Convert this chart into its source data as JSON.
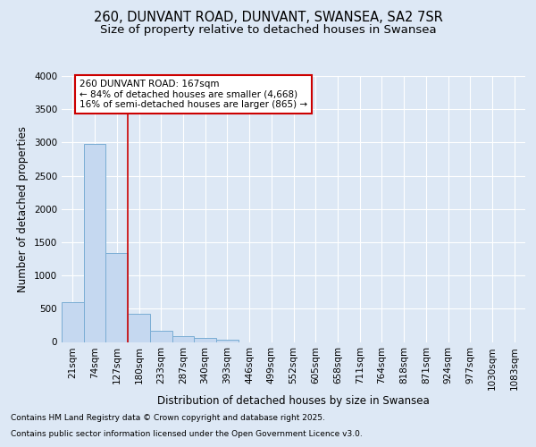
{
  "title_line1": "260, DUNVANT ROAD, DUNVANT, SWANSEA, SA2 7SR",
  "title_line2": "Size of property relative to detached houses in Swansea",
  "xlabel": "Distribution of detached houses by size in Swansea",
  "ylabel": "Number of detached properties",
  "categories": [
    "21sqm",
    "74sqm",
    "127sqm",
    "180sqm",
    "233sqm",
    "287sqm",
    "340sqm",
    "393sqm",
    "446sqm",
    "499sqm",
    "552sqm",
    "605sqm",
    "658sqm",
    "711sqm",
    "764sqm",
    "818sqm",
    "871sqm",
    "924sqm",
    "977sqm",
    "1030sqm",
    "1083sqm"
  ],
  "values": [
    600,
    2980,
    1340,
    420,
    165,
    90,
    55,
    40,
    0,
    0,
    0,
    0,
    0,
    0,
    0,
    0,
    0,
    0,
    0,
    0,
    0
  ],
  "bar_color": "#c5d8f0",
  "bar_edge_color": "#7aadd4",
  "vline_x": 3,
  "vline_color": "#cc0000",
  "annotation_text": "260 DUNVANT ROAD: 167sqm\n← 84% of detached houses are smaller (4,668)\n16% of semi-detached houses are larger (865) →",
  "annotation_box_color": "#cc0000",
  "ylim": [
    0,
    4000
  ],
  "yticks": [
    0,
    500,
    1000,
    1500,
    2000,
    2500,
    3000,
    3500,
    4000
  ],
  "bg_color": "#dde8f5",
  "plot_bg_color": "#dde8f5",
  "grid_color": "#ffffff",
  "footer_line1": "Contains HM Land Registry data © Crown copyright and database right 2025.",
  "footer_line2": "Contains public sector information licensed under the Open Government Licence v3.0.",
  "title_fontsize": 10.5,
  "subtitle_fontsize": 9.5,
  "axis_label_fontsize": 8.5,
  "tick_fontsize": 7.5,
  "annotation_fontsize": 7.5,
  "footer_fontsize": 6.5
}
